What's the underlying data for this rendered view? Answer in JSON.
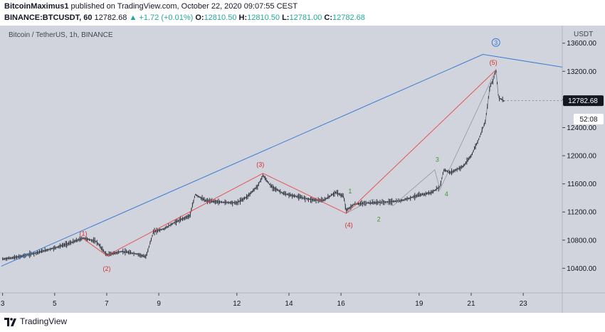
{
  "header": {
    "author": "BitcoinMaximus1",
    "published_text": "published on TradingView.com, October 22, 2020 09:07:55 CEST",
    "symbol": "BINANCE:BTCUSDT, 60",
    "last": "12782.68",
    "change": "▲ +1.72 (+0.01%)",
    "o_label": "O:",
    "o_value": "12810.50",
    "h_label": "H:",
    "h_value": "12810.50",
    "l_label": "L:",
    "l_value": "12781.00",
    "c_label": "C:",
    "c_value": "12782.68"
  },
  "chart_title": "Bitcoin / TetherUS, 1h, BINANCE",
  "axis_currency": "USDT",
  "price_tag": "12782.68",
  "countdown": "52:08",
  "footer": {
    "logo_text": "TradingView"
  },
  "colors": {
    "chart_bg": "#d1d4dc",
    "candle": "#131722",
    "blue_line": "#3a7bd5",
    "red_line": "#e84545",
    "wave_red": "#d32f2f",
    "wave_green": "#3d9a2c",
    "tag_bg": "#131722"
  },
  "chart_data": {
    "type": "line",
    "title": "Bitcoin / TetherUS, 1h, BINANCE",
    "ylabel": "USDT",
    "ylim": [
      10050,
      13850
    ],
    "xlim": [
      2.9,
      24.5
    ],
    "yticks": [
      10400,
      10800,
      11200,
      11600,
      12000,
      12400,
      12800,
      13200,
      13600
    ],
    "ytick_labels": [
      "10400.00",
      "10800.00",
      "11200.00",
      "11600.00",
      "12000.00",
      "12400.00",
      "12800.00",
      "13200.00",
      "13600.00"
    ],
    "xticks": [
      3,
      5,
      7,
      9,
      12,
      14,
      16,
      19,
      21,
      23
    ],
    "xtick_labels": [
      "3",
      "5",
      "7",
      "9",
      "12",
      "14",
      "16",
      "19",
      "21",
      "23"
    ],
    "grid": false,
    "price_path": [
      [
        3.0,
        10530
      ],
      [
        3.6,
        10560
      ],
      [
        4.3,
        10620
      ],
      [
        5.0,
        10690
      ],
      [
        5.6,
        10760
      ],
      [
        6.1,
        10830
      ],
      [
        6.6,
        10780
      ],
      [
        7.0,
        10590
      ],
      [
        7.6,
        10640
      ],
      [
        8.2,
        10600
      ],
      [
        8.5,
        10560
      ],
      [
        8.8,
        10920
      ],
      [
        9.2,
        10960
      ],
      [
        9.6,
        11050
      ],
      [
        10.2,
        11150
      ],
      [
        10.4,
        11450
      ],
      [
        10.8,
        11360
      ],
      [
        11.4,
        11340
      ],
      [
        12.0,
        11330
      ],
      [
        12.4,
        11420
      ],
      [
        12.8,
        11570
      ],
      [
        13.0,
        11720
      ],
      [
        13.3,
        11570
      ],
      [
        13.8,
        11460
      ],
      [
        14.3,
        11420
      ],
      [
        14.8,
        11380
      ],
      [
        15.3,
        11360
      ],
      [
        15.8,
        11480
      ],
      [
        16.1,
        11420
      ],
      [
        16.2,
        11220
      ],
      [
        16.5,
        11310
      ],
      [
        17.1,
        11330
      ],
      [
        17.7,
        11340
      ],
      [
        18.3,
        11360
      ],
      [
        18.9,
        11430
      ],
      [
        19.5,
        11480
      ],
      [
        19.8,
        11560
      ],
      [
        19.95,
        11800
      ],
      [
        20.2,
        11760
      ],
      [
        20.7,
        11850
      ],
      [
        21.0,
        12000
      ],
      [
        21.3,
        12240
      ],
      [
        21.55,
        12500
      ],
      [
        21.72,
        12980
      ],
      [
        21.85,
        13080
      ],
      [
        21.95,
        13230
      ],
      [
        22.05,
        12830
      ],
      [
        22.25,
        12782.68
      ]
    ],
    "blue_trendline": [
      [
        2.95,
        10430
      ],
      [
        21.45,
        13440
      ],
      [
        24.5,
        13260
      ]
    ],
    "red_wave_lines": [
      [
        [
          6.1,
          10820
        ],
        [
          7.0,
          10580
        ],
        [
          13.0,
          11750
        ],
        [
          16.2,
          11180
        ],
        [
          21.95,
          13220
        ]
      ]
    ],
    "gray_wave_lines": [
      [
        [
          16.2,
          11180
        ],
        [
          17.2,
          11380
        ],
        [
          18.0,
          11290
        ],
        [
          19.6,
          11800
        ],
        [
          19.8,
          11520
        ],
        [
          21.95,
          13220
        ]
      ]
    ],
    "wave_labels": [
      {
        "text": "(1)",
        "x": 6.1,
        "y": 10900,
        "color": "red"
      },
      {
        "text": "(2)",
        "x": 7.0,
        "y": 10400,
        "color": "red"
      },
      {
        "text": "(3)",
        "x": 12.9,
        "y": 11880,
        "color": "red"
      },
      {
        "text": "(4)",
        "x": 16.3,
        "y": 11020,
        "color": "red"
      },
      {
        "text": "(5)",
        "x": 21.85,
        "y": 13330,
        "color": "red"
      },
      {
        "text": "1",
        "x": 16.35,
        "y": 11500,
        "color": "green"
      },
      {
        "text": "2",
        "x": 17.45,
        "y": 11100,
        "color": "green"
      },
      {
        "text": "3",
        "x": 19.7,
        "y": 11950,
        "color": "green"
      },
      {
        "text": "4",
        "x": 20.05,
        "y": 11460,
        "color": "green"
      },
      {
        "text": "3",
        "x": 21.95,
        "y": 13610,
        "color": "blue",
        "circled": true
      }
    ]
  }
}
